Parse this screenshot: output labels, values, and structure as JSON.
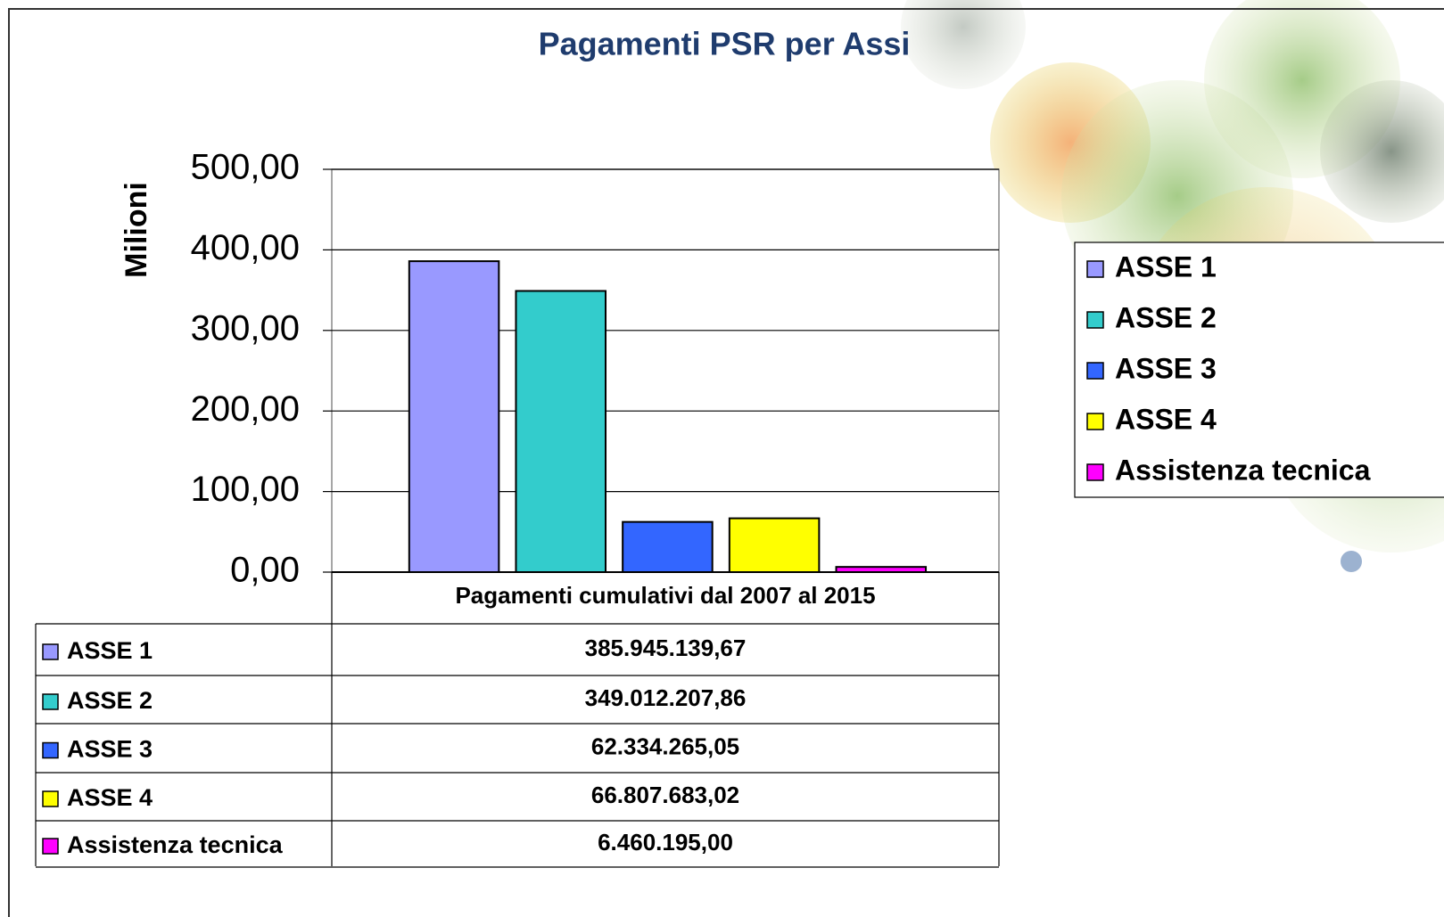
{
  "chart_data": {
    "type": "bar",
    "title": "Pagamenti PSR per Assi",
    "y_label": "Milioni",
    "categories": [
      "Pagamenti cumulativi dal 2007 al 2015"
    ],
    "series": [
      {
        "name": "ASSE 1",
        "color": "#9999ff",
        "values": [
          385.94513967
        ],
        "value_labels": [
          "385.945.139,67"
        ]
      },
      {
        "name": "ASSE 2",
        "color": "#33cccc",
        "values": [
          349.01220786
        ],
        "value_labels": [
          "349.012.207,86"
        ]
      },
      {
        "name": "ASSE 3",
        "color": "#3366ff",
        "values": [
          62.33426505
        ],
        "value_labels": [
          "62.334.265,05"
        ]
      },
      {
        "name": "ASSE 4",
        "color": "#ffff00",
        "values": [
          66.80768302
        ],
        "value_labels": [
          "66.807.683,02"
        ]
      },
      {
        "name": "Assistenza tecnica",
        "color": "#ff00ff",
        "values": [
          6.460195
        ],
        "value_labels": [
          "6.460.195,00"
        ]
      }
    ],
    "ylim": [
      0,
      500
    ],
    "yticks": [
      {
        "value": 0,
        "label": "0,00"
      },
      {
        "value": 100,
        "label": "100,00"
      },
      {
        "value": 200,
        "label": "200,00"
      },
      {
        "value": 300,
        "label": "300,00"
      },
      {
        "value": 400,
        "label": "400,00"
      },
      {
        "value": 500,
        "label": "500,00"
      }
    ],
    "grid": true,
    "legend": "right",
    "data_table": true
  }
}
